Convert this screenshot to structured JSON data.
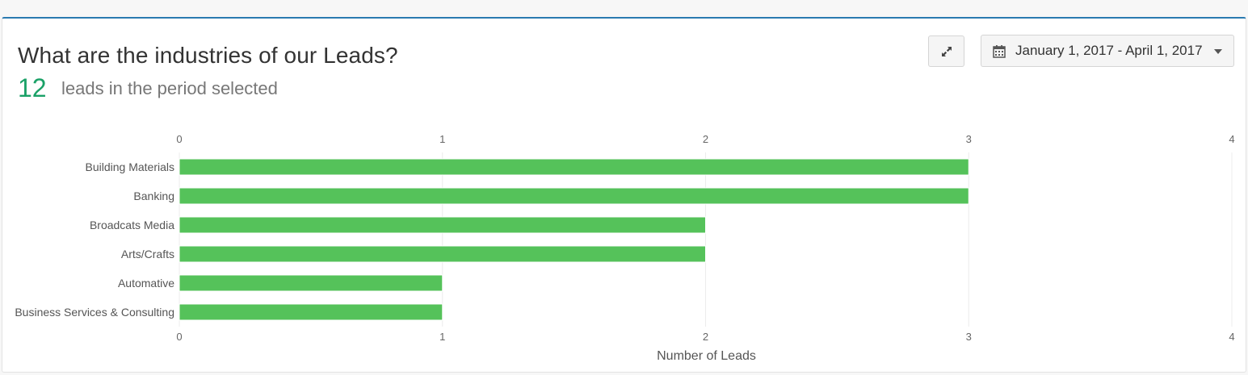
{
  "widget": {
    "title": "What are the industries of our Leads?",
    "lead_count": "12",
    "lead_count_label": "leads in the period selected",
    "expand_icon": "expand-arrows-icon",
    "date_range": "January 1, 2017 - April 1, 2017",
    "calendar_icon": "calendar-icon",
    "dropdown_icon": "caret-down-icon"
  },
  "colors": {
    "bar": "#55c25a",
    "count": "#1aa167",
    "panel_border_top": "#2a7ab0"
  },
  "chart_data": {
    "type": "bar",
    "orientation": "horizontal",
    "categories": [
      "Building Materials",
      "Banking",
      "Broadcats Media",
      "Arts/Crafts",
      "Automative",
      "Business Services & Consulting"
    ],
    "values": [
      3,
      3,
      2,
      2,
      1,
      1
    ],
    "xlabel": "Number of Leads",
    "xlim": [
      0,
      4
    ],
    "xticks": [
      "0",
      "1",
      "2",
      "3",
      "4"
    ],
    "grid": true
  }
}
